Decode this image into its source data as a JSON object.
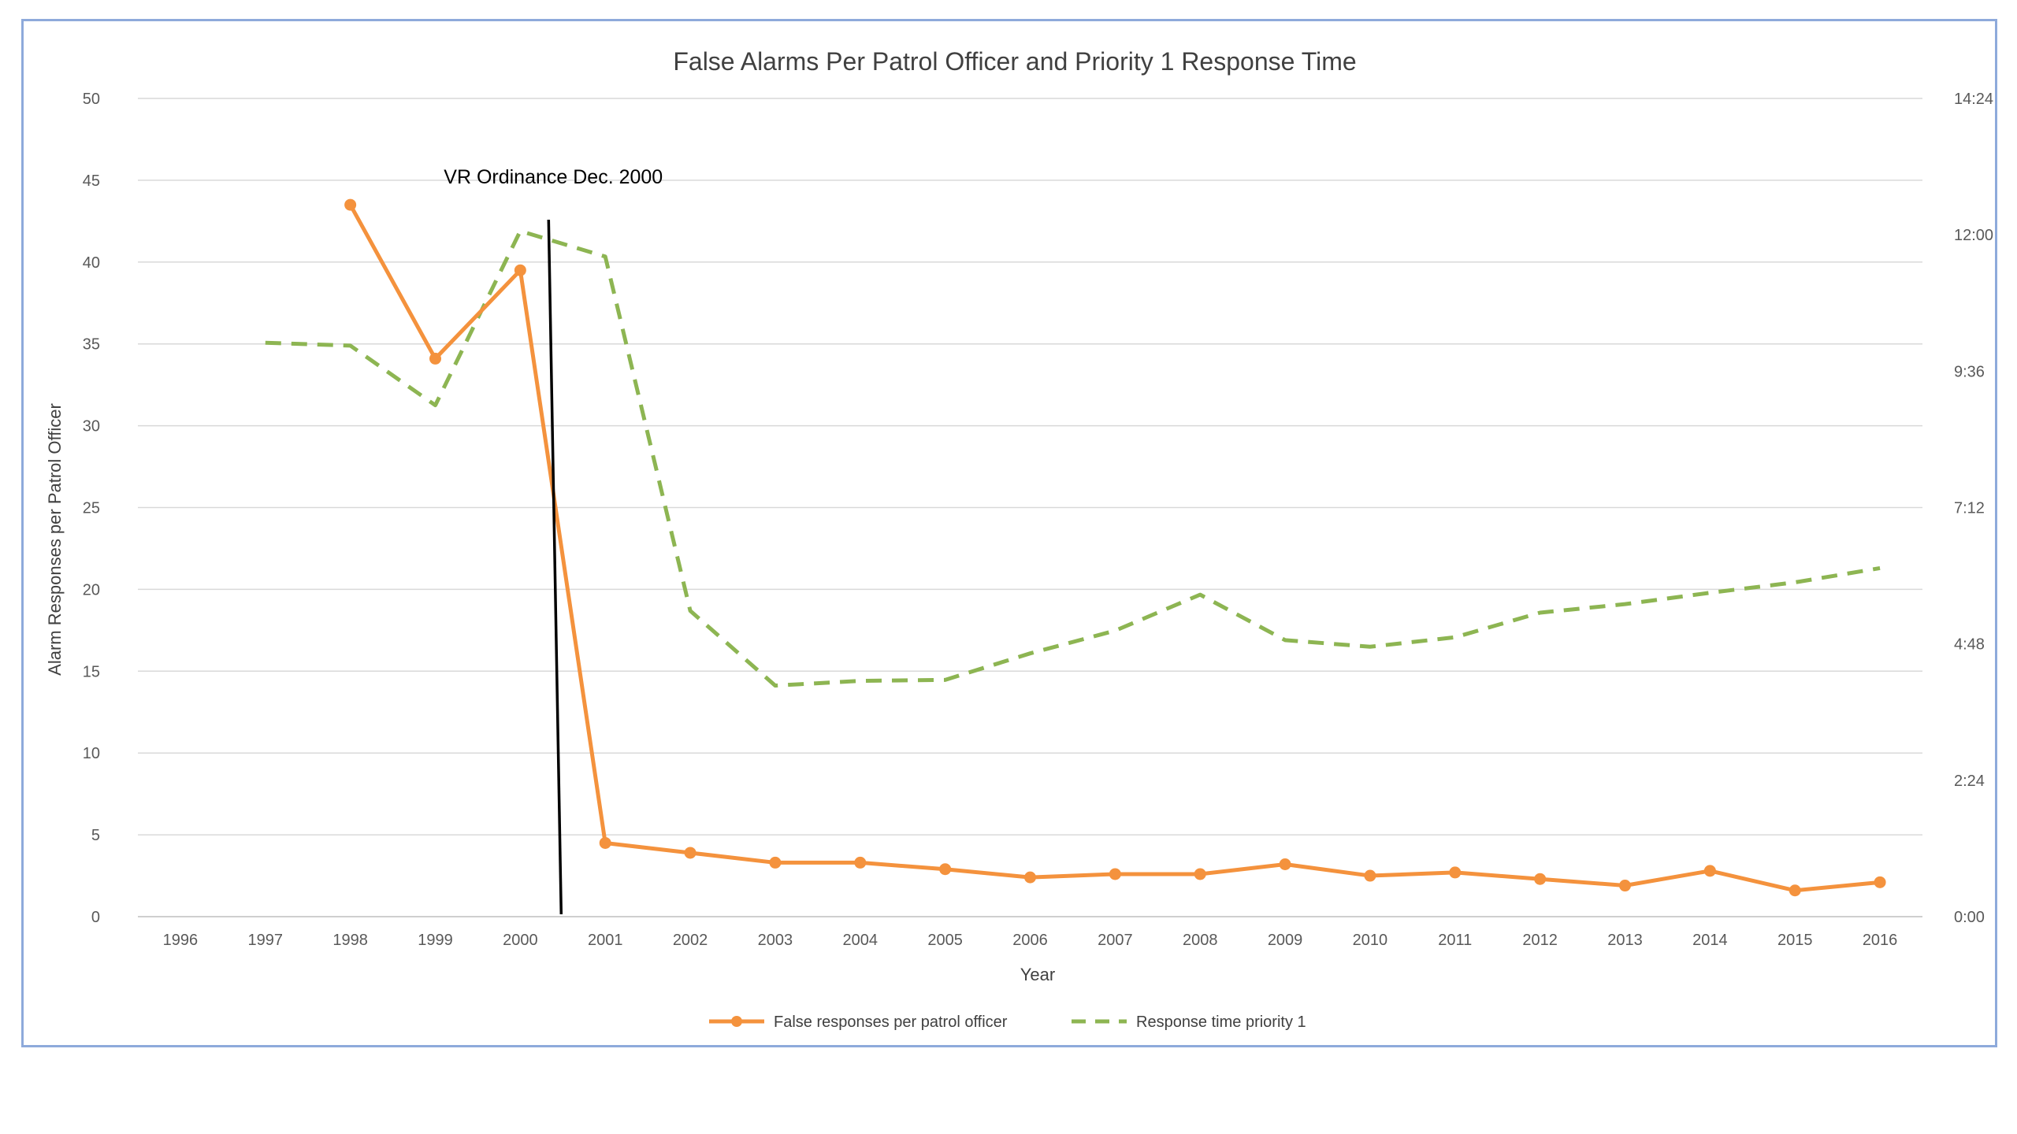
{
  "chart_data": {
    "type": "line",
    "title": "False Alarms Per Patrol Officer and Priority 1 Response Time",
    "xlabel": "Year",
    "ylabel": "Alarm Responses per Patrol Officer",
    "categories": [
      "1996",
      "1997",
      "1998",
      "1999",
      "2000",
      "2001",
      "2002",
      "2003",
      "2004",
      "2005",
      "2006",
      "2007",
      "2008",
      "2009",
      "2010",
      "2011",
      "2012",
      "2013",
      "2014",
      "2015",
      "2016"
    ],
    "ylim": [
      0,
      50
    ],
    "y_ticks": [
      "0",
      "5",
      "10",
      "15",
      "20",
      "25",
      "30",
      "35",
      "40",
      "45",
      "50"
    ],
    "y2_ticks": [
      "0:00",
      "2:24",
      "4:48",
      "7:12",
      "9:36",
      "12:00",
      "14:24"
    ],
    "y2_range_minutes": [
      0,
      864
    ],
    "grid": true,
    "legend_position": "bottom",
    "series": [
      {
        "name": "False responses per patrol officer",
        "axis": "left",
        "color": "#f4923d",
        "style": "solid-markers",
        "values": [
          null,
          null,
          43.5,
          34.1,
          39.5,
          4.5,
          3.9,
          3.3,
          3.3,
          2.9,
          2.4,
          2.6,
          2.6,
          3.2,
          2.5,
          2.7,
          2.3,
          1.9,
          2.8,
          1.6,
          2.1
        ]
      },
      {
        "name": "Response time priority 1",
        "axis": "right",
        "color": "#8db552",
        "style": "dashed",
        "values_minutes": [
          null,
          606,
          603,
          540,
          724,
          697,
          323,
          244,
          249,
          250,
          278,
          302,
          340,
          292,
          285,
          295,
          321,
          330,
          342,
          353,
          368
        ]
      }
    ],
    "annotations": [
      {
        "text": "VR Ordinance Dec. 2000",
        "position_year": 2000.5
      }
    ]
  },
  "colors": {
    "frame_border": "#8eaadb",
    "gridline": "#d9d9d9",
    "marker_line": "#000000"
  }
}
